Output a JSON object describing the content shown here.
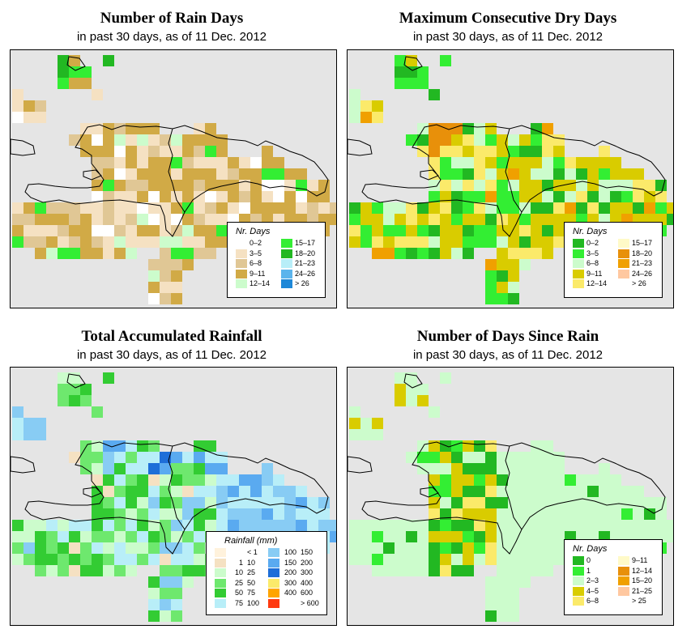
{
  "panels": [
    {
      "id": "rain-days",
      "title": "Number of Rain Days",
      "subtitle": "in past 30 days, as of  11 Dec. 2012",
      "legend": {
        "title": "Nr. Days",
        "items": [
          {
            "label": "0–2",
            "color": "#ffffff"
          },
          {
            "label": "3–5",
            "color": "#f5e1c2"
          },
          {
            "label": "6–8",
            "color": "#e0c795"
          },
          {
            "label": "9–11",
            "color": "#d1aa46"
          },
          {
            "label": "12–14",
            "color": "#ccfccc"
          },
          {
            "label": "15–17",
            "color": "#33ee33"
          },
          {
            "label": "18–20",
            "color": "#22b822"
          },
          {
            "label": "21–23",
            "color": "#b8eef8"
          },
          {
            "label": "24–26",
            "color": "#5cb4ec"
          },
          {
            "label": "> 26",
            "color": "#1e88d8"
          }
        ]
      }
    },
    {
      "id": "dry-days",
      "title": "Maximum Consecutive Dry Days",
      "subtitle": "in past 30 days, as of  11 Dec. 2012",
      "legend": {
        "title": "Nr. Days",
        "items": [
          {
            "label": "0–2",
            "color": "#22b822"
          },
          {
            "label": "3–5",
            "color": "#33ee33"
          },
          {
            "label": "6–8",
            "color": "#ccfccc"
          },
          {
            "label": "9–11",
            "color": "#d9cc00"
          },
          {
            "label": "12–14",
            "color": "#fbea6a"
          },
          {
            "label": "15–17",
            "color": "#fffac8"
          },
          {
            "label": "18–20",
            "color": "#e8900a"
          },
          {
            "label": "21–23",
            "color": "#f0a000"
          },
          {
            "label": "24–26",
            "color": "#ffc8a0"
          },
          {
            "label": "> 26",
            "color": "#ffffff"
          }
        ]
      }
    },
    {
      "id": "rainfall",
      "title": "Total Accumulated Rainfall",
      "subtitle": "in past 30 days, as of  11 Dec. 2012",
      "legend": {
        "title": "Rainfall (mm)",
        "items": [
          {
            "lo": "",
            "hi": "< 1",
            "color": "#fff2dc"
          },
          {
            "lo": "1",
            "hi": "10",
            "color": "#f5e1c2"
          },
          {
            "lo": "10",
            "hi": "25",
            "color": "#ccfccc"
          },
          {
            "lo": "25",
            "hi": "50",
            "color": "#6ee86e"
          },
          {
            "lo": "50",
            "hi": "75",
            "color": "#33cc33"
          },
          {
            "lo": "75",
            "hi": "100",
            "color": "#b8eef8"
          },
          {
            "lo": "100",
            "hi": "150",
            "color": "#88ccf4"
          },
          {
            "lo": "150",
            "hi": "200",
            "color": "#5aaaf0"
          },
          {
            "lo": "200",
            "hi": "300",
            "color": "#1e6ed8"
          },
          {
            "lo": "300",
            "hi": "400",
            "color": "#fbea6a"
          },
          {
            "lo": "400",
            "hi": "600",
            "color": "#ffa500"
          },
          {
            "lo": "",
            "hi": "> 600",
            "color": "#ff3a10"
          }
        ]
      }
    },
    {
      "id": "since-rain",
      "title": "Number of Days Since Rain",
      "subtitle": "in past 30 days, as of  11 Dec. 2012",
      "legend": {
        "title": "Nr. Days",
        "items": [
          {
            "label": "0",
            "color": "#22b822"
          },
          {
            "label": "1",
            "color": "#33ee33"
          },
          {
            "label": "2–3",
            "color": "#ccfccc"
          },
          {
            "label": "4–5",
            "color": "#d9cc00"
          },
          {
            "label": "6–8",
            "color": "#fbea6a"
          },
          {
            "label": "9–11",
            "color": "#fffac8"
          },
          {
            "label": "12–14",
            "color": "#e8900a"
          },
          {
            "label": "15–20",
            "color": "#f0a000"
          },
          {
            "label": "21–25",
            "color": "#ffc8a0"
          },
          {
            "label": "> 25",
            "color": "#ffffff"
          }
        ]
      }
    }
  ]
}
